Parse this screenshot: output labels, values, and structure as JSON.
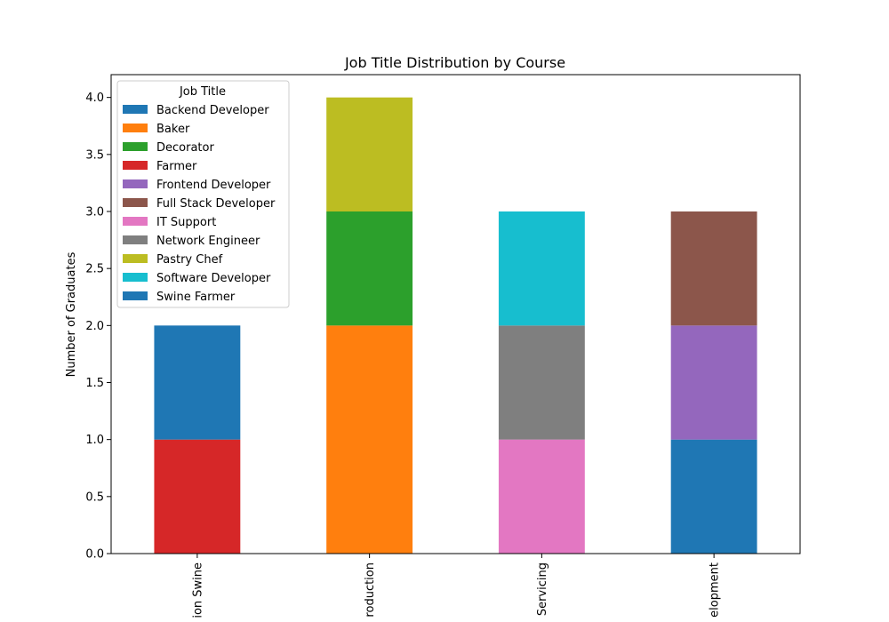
{
  "chart_data": {
    "type": "bar",
    "stacked": true,
    "title": "Job Title Distribution by Course",
    "xlabel": "",
    "ylabel": "Number of Graduates",
    "ylim": [
      0,
      4.2
    ],
    "yticks": [
      "0.0",
      "0.5",
      "1.0",
      "1.5",
      "2.0",
      "2.5",
      "3.0",
      "3.5",
      "4.0"
    ],
    "categories": [
      "Agricultural Crop Production Swine",
      "Bread and Pastry Production",
      "Computer Systems Servicing",
      "Web Development"
    ],
    "category_display": [
      "ion Swine",
      "roduction",
      "Servicing",
      "elopment"
    ],
    "legend_title": "Job Title",
    "legend_position": "upper-left",
    "series": [
      {
        "name": "Backend Developer",
        "color": "#1f77b4",
        "values": [
          0,
          0,
          0,
          1
        ]
      },
      {
        "name": "Baker",
        "color": "#ff7f0e",
        "values": [
          0,
          2,
          0,
          0
        ]
      },
      {
        "name": "Decorator",
        "color": "#2ca02c",
        "values": [
          0,
          1,
          0,
          0
        ]
      },
      {
        "name": "Farmer",
        "color": "#d62728",
        "values": [
          1,
          0,
          0,
          0
        ]
      },
      {
        "name": "Frontend Developer",
        "color": "#9467bd",
        "values": [
          0,
          0,
          0,
          1
        ]
      },
      {
        "name": "Full Stack Developer",
        "color": "#8c564b",
        "values": [
          0,
          0,
          0,
          1
        ]
      },
      {
        "name": "IT Support",
        "color": "#e377c2",
        "values": [
          0,
          0,
          1,
          0
        ]
      },
      {
        "name": "Network Engineer",
        "color": "#7f7f7f",
        "values": [
          0,
          0,
          1,
          0
        ]
      },
      {
        "name": "Pastry Chef",
        "color": "#bcbd22",
        "values": [
          0,
          1,
          0,
          0
        ]
      },
      {
        "name": "Software Developer",
        "color": "#17becf",
        "values": [
          0,
          0,
          1,
          0
        ]
      },
      {
        "name": "Swine Farmer",
        "color": "#1f77b4",
        "values": [
          1,
          0,
          0,
          0
        ]
      }
    ]
  }
}
